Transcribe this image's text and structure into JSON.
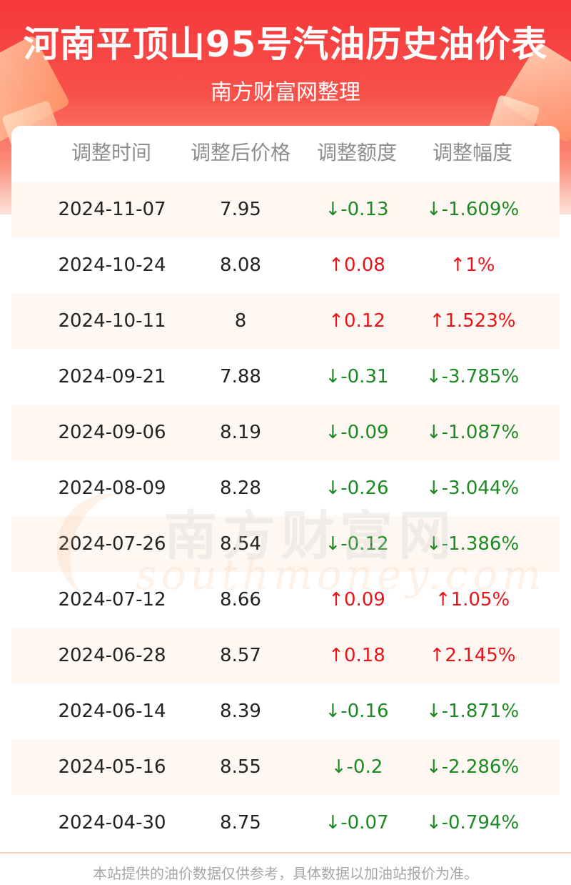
{
  "header": {
    "title": "河南平顶山95号汽油历史油价表",
    "subtitle": "南方财富网整理"
  },
  "table": {
    "columns": [
      "调整时间",
      "调整后价格",
      "调整额度",
      "调整幅度"
    ],
    "rows": [
      {
        "date": "2024-11-07",
        "price": "7.95",
        "change": "↓-0.13",
        "pct": "↓-1.609%",
        "dir": "down"
      },
      {
        "date": "2024-10-24",
        "price": "8.08",
        "change": "↑0.08",
        "pct": "↑1%",
        "dir": "up"
      },
      {
        "date": "2024-10-11",
        "price": "8",
        "change": "↑0.12",
        "pct": "↑1.523%",
        "dir": "up"
      },
      {
        "date": "2024-09-21",
        "price": "7.88",
        "change": "↓-0.31",
        "pct": "↓-3.785%",
        "dir": "down"
      },
      {
        "date": "2024-09-06",
        "price": "8.19",
        "change": "↓-0.09",
        "pct": "↓-1.087%",
        "dir": "down"
      },
      {
        "date": "2024-08-09",
        "price": "8.28",
        "change": "↓-0.26",
        "pct": "↓-3.044%",
        "dir": "down"
      },
      {
        "date": "2024-07-26",
        "price": "8.54",
        "change": "↓-0.12",
        "pct": "↓-1.386%",
        "dir": "down"
      },
      {
        "date": "2024-07-12",
        "price": "8.66",
        "change": "↑0.09",
        "pct": "↑1.05%",
        "dir": "up"
      },
      {
        "date": "2024-06-28",
        "price": "8.57",
        "change": "↑0.18",
        "pct": "↑2.145%",
        "dir": "up"
      },
      {
        "date": "2024-06-14",
        "price": "8.39",
        "change": "↓-0.16",
        "pct": "↓-1.871%",
        "dir": "down"
      },
      {
        "date": "2024-05-16",
        "price": "8.55",
        "change": "↓-0.2",
        "pct": "↓-2.286%",
        "dir": "down"
      },
      {
        "date": "2024-04-30",
        "price": "8.75",
        "change": "↓-0.07",
        "pct": "↓-0.794%",
        "dir": "down"
      }
    ]
  },
  "watermark": {
    "cn": "南方财富网",
    "en": "southmoney.com"
  },
  "footer": {
    "note": "本站提供的油价数据仅供参考，具体数据以加油站报价为准。"
  },
  "colors": {
    "up": "#e8141a",
    "down": "#1c8a23",
    "header_red": "#f5373a",
    "row_alt": "#fff8f2"
  }
}
